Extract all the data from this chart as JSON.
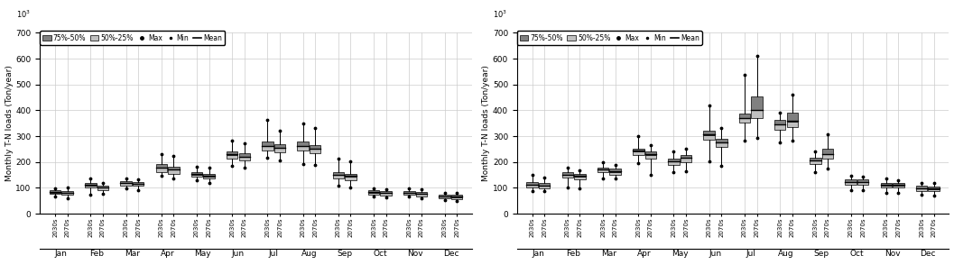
{
  "rcp45": {
    "months": [
      "Jan",
      "Feb",
      "Mar",
      "Apr",
      "May",
      "Jun",
      "Jul",
      "Aug",
      "Sep",
      "Oct",
      "Nov",
      "Dec"
    ],
    "data_2030s": [
      {
        "q75": 90,
        "q50": 82,
        "q25": 76,
        "max": 97,
        "min": 68,
        "mean": 83
      },
      {
        "q75": 120,
        "q50": 110,
        "q25": 102,
        "max": 138,
        "min": 75,
        "mean": 112
      },
      {
        "q75": 125,
        "q50": 118,
        "q25": 110,
        "max": 138,
        "min": 98,
        "mean": 119
      },
      {
        "q75": 192,
        "q50": 178,
        "q25": 162,
        "max": 232,
        "min": 148,
        "mean": 179
      },
      {
        "q75": 162,
        "q50": 152,
        "q25": 142,
        "max": 182,
        "min": 128,
        "mean": 153
      },
      {
        "q75": 242,
        "q50": 228,
        "q25": 212,
        "max": 282,
        "min": 185,
        "mean": 229
      },
      {
        "q75": 278,
        "q50": 262,
        "q25": 245,
        "max": 362,
        "min": 215,
        "mean": 263
      },
      {
        "q75": 278,
        "q50": 262,
        "q25": 245,
        "max": 348,
        "min": 192,
        "mean": 263
      },
      {
        "q75": 162,
        "q50": 150,
        "q25": 135,
        "max": 212,
        "min": 108,
        "mean": 151
      },
      {
        "q75": 90,
        "q50": 82,
        "q25": 75,
        "max": 98,
        "min": 68,
        "mean": 83
      },
      {
        "q75": 88,
        "q50": 80,
        "q25": 72,
        "max": 98,
        "min": 65,
        "mean": 81
      },
      {
        "q75": 75,
        "q50": 67,
        "q25": 60,
        "max": 80,
        "min": 52,
        "mean": 68
      }
    ],
    "data_2070s": [
      {
        "q75": 88,
        "q50": 80,
        "q25": 72,
        "max": 102,
        "min": 58,
        "mean": 81
      },
      {
        "q75": 108,
        "q50": 100,
        "q25": 92,
        "max": 118,
        "min": 78,
        "mean": 101
      },
      {
        "q75": 122,
        "q50": 115,
        "q25": 107,
        "max": 132,
        "min": 92,
        "mean": 116
      },
      {
        "q75": 182,
        "q50": 170,
        "q25": 155,
        "max": 222,
        "min": 138,
        "mean": 171
      },
      {
        "q75": 155,
        "q50": 145,
        "q25": 135,
        "max": 178,
        "min": 118,
        "mean": 146
      },
      {
        "q75": 235,
        "q50": 220,
        "q25": 205,
        "max": 272,
        "min": 178,
        "mean": 221
      },
      {
        "q75": 270,
        "q50": 255,
        "q25": 238,
        "max": 322,
        "min": 208,
        "mean": 256
      },
      {
        "q75": 265,
        "q50": 250,
        "q25": 235,
        "max": 332,
        "min": 188,
        "mean": 251
      },
      {
        "q75": 155,
        "q50": 145,
        "q25": 130,
        "max": 202,
        "min": 102,
        "mean": 146
      },
      {
        "q75": 87,
        "q50": 79,
        "q25": 70,
        "max": 96,
        "min": 62,
        "mean": 80
      },
      {
        "q75": 85,
        "q50": 77,
        "q25": 68,
        "max": 94,
        "min": 60,
        "mean": 78
      },
      {
        "q75": 72,
        "q50": 64,
        "q25": 56,
        "max": 79,
        "min": 50,
        "mean": 65
      }
    ]
  },
  "rcp85": {
    "months": [
      "Jan",
      "Feb",
      "Mar",
      "Apr",
      "May",
      "Jun",
      "Jul",
      "Aug",
      "Sep",
      "Oct",
      "Nov",
      "Dec"
    ],
    "data_2030s": [
      {
        "q75": 122,
        "q50": 112,
        "q25": 102,
        "max": 150,
        "min": 88,
        "mean": 113
      },
      {
        "q75": 160,
        "q50": 150,
        "q25": 140,
        "max": 180,
        "min": 102,
        "mean": 151
      },
      {
        "q75": 180,
        "q50": 170,
        "q25": 160,
        "max": 198,
        "min": 138,
        "mean": 171
      },
      {
        "q75": 252,
        "q50": 242,
        "q25": 228,
        "max": 300,
        "min": 195,
        "mean": 243
      },
      {
        "q75": 212,
        "q50": 202,
        "q25": 190,
        "max": 242,
        "min": 160,
        "mean": 203
      },
      {
        "q75": 322,
        "q50": 305,
        "q25": 288,
        "max": 418,
        "min": 202,
        "mean": 306
      },
      {
        "q75": 388,
        "q50": 370,
        "q25": 352,
        "max": 538,
        "min": 282,
        "mean": 371
      },
      {
        "q75": 365,
        "q50": 345,
        "q25": 325,
        "max": 390,
        "min": 275,
        "mean": 346
      },
      {
        "q75": 218,
        "q50": 205,
        "q25": 192,
        "max": 242,
        "min": 162,
        "mean": 206
      },
      {
        "q75": 132,
        "q50": 122,
        "q25": 112,
        "max": 148,
        "min": 92,
        "mean": 123
      },
      {
        "q75": 120,
        "q50": 110,
        "q25": 100,
        "max": 135,
        "min": 82,
        "mean": 111
      },
      {
        "q75": 108,
        "q50": 98,
        "q25": 88,
        "max": 120,
        "min": 72,
        "mean": 99
      }
    ],
    "data_2070s": [
      {
        "q75": 118,
        "q50": 108,
        "q25": 98,
        "max": 140,
        "min": 86,
        "mean": 109
      },
      {
        "q75": 155,
        "q50": 145,
        "q25": 132,
        "max": 168,
        "min": 98,
        "mean": 146
      },
      {
        "q75": 175,
        "q50": 162,
        "q25": 150,
        "max": 190,
        "min": 135,
        "mean": 163
      },
      {
        "q75": 242,
        "q50": 228,
        "q25": 213,
        "max": 265,
        "min": 152,
        "mean": 229
      },
      {
        "q75": 228,
        "q50": 215,
        "q25": 200,
        "max": 252,
        "min": 165,
        "mean": 216
      },
      {
        "q75": 290,
        "q50": 275,
        "q25": 258,
        "max": 332,
        "min": 185,
        "mean": 276
      },
      {
        "q75": 455,
        "q50": 400,
        "q25": 370,
        "max": 612,
        "min": 292,
        "mean": 401
      },
      {
        "q75": 390,
        "q50": 358,
        "q25": 335,
        "max": 460,
        "min": 282,
        "mean": 359
      },
      {
        "q75": 250,
        "q50": 230,
        "q25": 212,
        "max": 308,
        "min": 175,
        "mean": 231
      },
      {
        "q75": 133,
        "q50": 123,
        "q25": 111,
        "max": 145,
        "min": 90,
        "mean": 124
      },
      {
        "q75": 120,
        "q50": 110,
        "q25": 100,
        "max": 130,
        "min": 80,
        "mean": 111
      },
      {
        "q75": 106,
        "q50": 96,
        "q25": 86,
        "max": 118,
        "min": 70,
        "mean": 97
      }
    ]
  },
  "ylabel": "Monthly T-N loads (Ton/year)",
  "ylim": [
    0,
    700
  ],
  "yticks": [
    0,
    100,
    200,
    300,
    400,
    500,
    600,
    700
  ],
  "color_dark": "#808080",
  "color_light": "#c0c0c0",
  "background_color": "#ffffff",
  "grid_color": "#cccccc"
}
